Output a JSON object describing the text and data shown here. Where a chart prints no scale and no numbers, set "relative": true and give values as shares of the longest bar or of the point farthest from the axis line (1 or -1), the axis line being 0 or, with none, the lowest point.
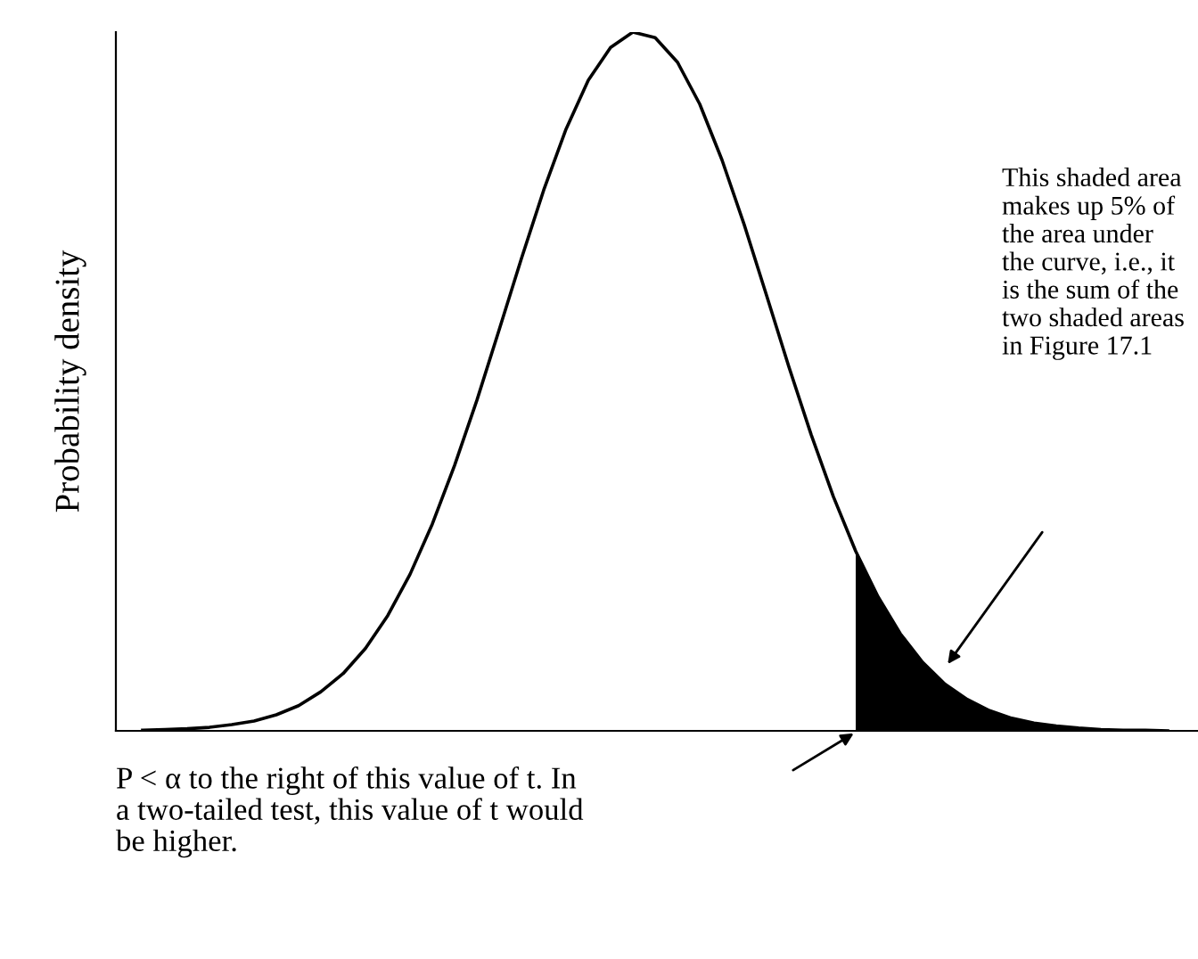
{
  "chart_data": {
    "type": "line",
    "relative": true,
    "tick_labels": false,
    "ylabel": "Probability density",
    "categories": [
      null,
      null,
      null,
      null,
      null,
      null,
      null,
      null,
      null,
      null,
      null,
      null,
      null,
      null,
      null,
      null,
      null,
      null,
      null,
      null,
      null,
      null,
      null,
      null,
      null,
      null,
      null,
      null,
      null,
      null,
      null,
      null,
      null,
      null,
      null,
      null,
      null,
      null,
      null,
      null,
      null,
      null,
      null,
      null,
      null,
      null,
      null
    ],
    "series": [
      {
        "type": "line",
        "color": "#000000",
        "values": [
          0.001,
          0.002,
          0.003,
          0.005,
          0.009,
          0.014,
          0.023,
          0.036,
          0.056,
          0.082,
          0.118,
          0.165,
          0.224,
          0.296,
          0.38,
          0.473,
          0.574,
          0.676,
          0.774,
          0.861,
          0.931,
          0.978,
          1,
          0.992,
          0.957,
          0.897,
          0.817,
          0.724,
          0.623,
          0.521,
          0.424,
          0.335,
          0.257,
          0.192,
          0.139,
          0.098,
          0.067,
          0.045,
          0.029,
          0.018,
          0.011,
          0.007,
          0.004,
          0.002,
          0.001,
          0.001,
          0.0
        ]
      },
      {
        "type": "area",
        "color": "#000000",
        "values": [
          null,
          null,
          null,
          null,
          null,
          null,
          null,
          null,
          null,
          null,
          null,
          null,
          null,
          null,
          null,
          null,
          null,
          null,
          null,
          null,
          null,
          null,
          null,
          null,
          null,
          null,
          null,
          null,
          null,
          null,
          null,
          null,
          0.257,
          0.192,
          0.139,
          0.098,
          0.067,
          0.045,
          0.029,
          0.018,
          0.011,
          0.007,
          0.004,
          0.002,
          0.001,
          0.001,
          0.0
        ]
      }
    ],
    "annotations": [
      "This shaded area\nmakes up 5% of\nthe area under\nthe curve, i.e., it\nis the sum of the\ntwo shaded areas\nin Figure 17.1",
      "P < α to the right of this value of t. In\na two-tailed test, this value of t would\nbe higher."
    ]
  }
}
